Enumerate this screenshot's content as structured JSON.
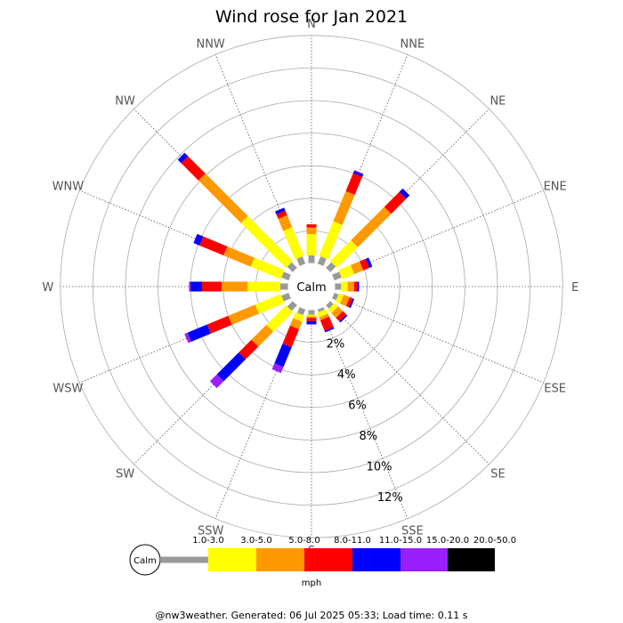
{
  "chart_data": {
    "type": "windrose",
    "title": "Wind rose for Jan 2021",
    "directions": [
      "N",
      "NNE",
      "NE",
      "ENE",
      "E",
      "ESE",
      "SE",
      "SSE",
      "S",
      "SSW",
      "SW",
      "WSW",
      "W",
      "WNW",
      "NW",
      "NNW"
    ],
    "radial_unit": "%",
    "radial_ticks": [
      "2%",
      "4%",
      "6%",
      "8%",
      "10%",
      "12%"
    ],
    "radial_max": 14,
    "calm_label": "Calm",
    "speed_unit": "mph",
    "speed_bins": [
      "1.0-3.0",
      "3.0-5.0",
      "5.0-8.0",
      "8.0-11.0",
      "11.0-15.0",
      "15.0-20.0",
      "20.0-50.0"
    ],
    "colors": [
      "#999999",
      "#ffff00",
      "#ff9900",
      "#ff0000",
      "#0000ff",
      "#9a1fff",
      "#000000"
    ],
    "series": [
      {
        "direction": "N",
        "values": [
          0.5,
          1.3,
          0.4,
          0.2,
          0.0,
          0.0,
          0.0
        ]
      },
      {
        "direction": "NNE",
        "values": [
          0.5,
          2.3,
          2.0,
          1.2,
          0.15,
          0.05,
          0.0
        ]
      },
      {
        "direction": "NE",
        "values": [
          0.5,
          1.8,
          2.9,
          1.3,
          0.3,
          0.0,
          0.0
        ]
      },
      {
        "direction": "ENE",
        "values": [
          0.5,
          0.8,
          0.6,
          0.4,
          0.2,
          0.0,
          0.0
        ]
      },
      {
        "direction": "E",
        "values": [
          0.4,
          0.4,
          0.4,
          0.2,
          0.1,
          0.0,
          0.0
        ]
      },
      {
        "direction": "ESE",
        "values": [
          0.3,
          0.3,
          0.4,
          0.2,
          0.1,
          0.0,
          0.0
        ]
      },
      {
        "direction": "SE",
        "values": [
          0.3,
          0.3,
          0.4,
          0.3,
          0.1,
          0.0,
          0.0
        ]
      },
      {
        "direction": "SSE",
        "values": [
          0.2,
          0.3,
          0.2,
          0.7,
          0.1,
          0.0,
          0.0
        ]
      },
      {
        "direction": "S",
        "values": [
          0.3,
          0.1,
          0.1,
          0.2,
          0.2,
          0.0,
          0.0
        ]
      },
      {
        "direction": "SSW",
        "values": [
          0.4,
          0.4,
          0.5,
          1.2,
          1.3,
          0.4,
          0.0
        ]
      },
      {
        "direction": "SW",
        "values": [
          0.5,
          1.7,
          1.3,
          1.1,
          1.9,
          0.6,
          0.0
        ]
      },
      {
        "direction": "WSW",
        "values": [
          0.5,
          1.7,
          1.8,
          1.4,
          1.3,
          0.2,
          0.0
        ]
      },
      {
        "direction": "W",
        "values": [
          0.5,
          2.0,
          1.6,
          1.2,
          0.7,
          0.1,
          0.0
        ]
      },
      {
        "direction": "WNW",
        "values": [
          0.5,
          2.0,
          1.8,
          1.6,
          0.4,
          0.0,
          0.0
        ]
      },
      {
        "direction": "NW",
        "values": [
          0.5,
          3.9,
          3.7,
          1.5,
          0.3,
          0.0,
          0.0
        ]
      },
      {
        "direction": "NNW",
        "values": [
          0.5,
          1.9,
          0.8,
          0.3,
          0.2,
          0.0,
          0.0
        ]
      }
    ]
  },
  "footer": "@nw3weather. Generated: 06 Jul 2025 05:33; Load time: 0.11 s"
}
